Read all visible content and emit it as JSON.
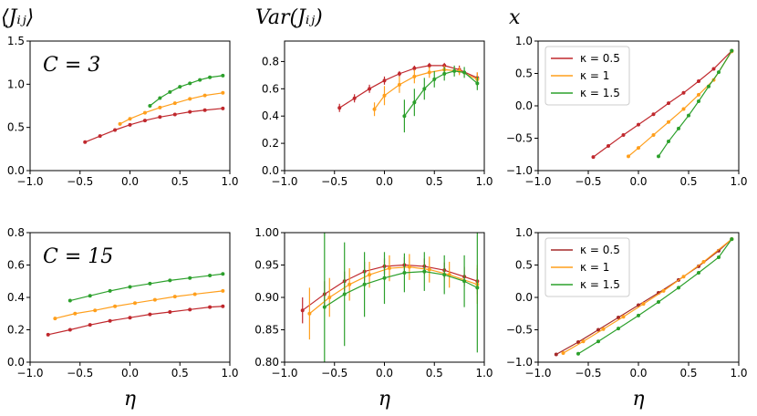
{
  "chart_data": [
    {
      "type": "line",
      "title": "⟨Jᵢⱼ⟩",
      "annotation": "C = 3",
      "xlim": [
        -1,
        1
      ],
      "xticks": [
        {
          "value": -1,
          "label": "−1.0"
        },
        {
          "value": -0.5,
          "label": "−0.5"
        },
        {
          "value": 0,
          "label": "0.0"
        },
        0.5,
        {
          "value": 1,
          "label": "1.0"
        }
      ],
      "ylim": [
        0,
        1.5
      ],
      "yticks": [
        {
          "value": 0,
          "label": "0.0"
        },
        0.5,
        {
          "value": 1,
          "label": "1.0"
        },
        1.5
      ],
      "series": [
        {
          "name": "κ = 0.5",
          "color": "#c0282d",
          "x": [
            -0.45,
            -0.3,
            -0.15,
            0,
            0.15,
            0.3,
            0.45,
            0.6,
            0.75,
            0.93
          ],
          "values": [
            0.33,
            0.4,
            0.47,
            0.53,
            0.58,
            0.62,
            0.65,
            0.68,
            0.7,
            0.72
          ]
        },
        {
          "name": "κ = 1",
          "color": "#ff9f1c",
          "x": [
            -0.1,
            0,
            0.15,
            0.3,
            0.45,
            0.6,
            0.75,
            0.93
          ],
          "values": [
            0.54,
            0.6,
            0.67,
            0.73,
            0.78,
            0.83,
            0.87,
            0.9
          ]
        },
        {
          "name": "κ = 1.5",
          "color": "#2ca02c",
          "x": [
            0.2,
            0.3,
            0.4,
            0.5,
            0.6,
            0.7,
            0.8,
            0.93
          ],
          "values": [
            0.75,
            0.84,
            0.91,
            0.97,
            1.01,
            1.05,
            1.08,
            1.1
          ]
        }
      ]
    },
    {
      "type": "errorline",
      "title": "Var(Jᵢⱼ)",
      "xlim": [
        -1,
        1
      ],
      "xticks": [
        {
          "value": -1,
          "label": "−1.0"
        },
        {
          "value": -0.5,
          "label": "−0.5"
        },
        {
          "value": 0,
          "label": "0.0"
        },
        0.5,
        {
          "value": 1,
          "label": "1.0"
        }
      ],
      "ylim": [
        0,
        0.95
      ],
      "yticks": [
        {
          "value": 0,
          "label": "0.0"
        },
        0.2,
        0.4,
        0.6,
        0.8
      ],
      "series": [
        {
          "name": "κ = 0.5",
          "color": "#c0282d",
          "x": [
            -0.45,
            -0.3,
            -0.15,
            0,
            0.15,
            0.3,
            0.45,
            0.6,
            0.75,
            0.93
          ],
          "values": [
            0.46,
            0.53,
            0.6,
            0.66,
            0.71,
            0.75,
            0.77,
            0.77,
            0.74,
            0.68
          ],
          "errors": [
            0.03,
            0.03,
            0.03,
            0.03,
            0.02,
            0.02,
            0.02,
            0.02,
            0.03,
            0.04
          ]
        },
        {
          "name": "κ = 1",
          "color": "#ff9f1c",
          "x": [
            -0.1,
            0,
            0.15,
            0.3,
            0.45,
            0.6,
            0.75,
            0.93
          ],
          "values": [
            0.45,
            0.55,
            0.63,
            0.69,
            0.72,
            0.74,
            0.73,
            0.67
          ],
          "errors": [
            0.05,
            0.07,
            0.06,
            0.05,
            0.04,
            0.03,
            0.03,
            0.05
          ]
        },
        {
          "name": "κ = 1.5",
          "color": "#2ca02c",
          "x": [
            0.2,
            0.3,
            0.4,
            0.5,
            0.6,
            0.7,
            0.8,
            0.93
          ],
          "values": [
            0.4,
            0.5,
            0.6,
            0.67,
            0.71,
            0.73,
            0.72,
            0.64
          ],
          "errors": [
            0.12,
            0.1,
            0.08,
            0.06,
            0.05,
            0.04,
            0.04,
            0.05
          ]
        }
      ]
    },
    {
      "type": "line",
      "title": "x",
      "legend": "upper left",
      "xlim": [
        -1,
        1
      ],
      "xticks": [
        {
          "value": -1,
          "label": "−1.0"
        },
        {
          "value": -0.5,
          "label": "−0.5"
        },
        {
          "value": 0,
          "label": "0.0"
        },
        0.5,
        {
          "value": 1,
          "label": "1.0"
        }
      ],
      "ylim": [
        -1,
        1
      ],
      "yticks": [
        {
          "value": -1,
          "label": "−1.0"
        },
        {
          "value": -0.5,
          "label": "−0.5"
        },
        {
          "value": 0,
          "label": "0.0"
        },
        0.5,
        {
          "value": 1,
          "label": "1.0"
        }
      ],
      "series": [
        {
          "name": "κ = 0.5",
          "color": "#c0282d",
          "x": [
            -0.45,
            -0.3,
            -0.15,
            0,
            0.15,
            0.3,
            0.45,
            0.6,
            0.75,
            0.93
          ],
          "values": [
            -0.79,
            -0.62,
            -0.45,
            -0.29,
            -0.13,
            0.04,
            0.2,
            0.38,
            0.57,
            0.85
          ]
        },
        {
          "name": "κ = 1",
          "color": "#ff9f1c",
          "x": [
            -0.1,
            0,
            0.15,
            0.3,
            0.45,
            0.6,
            0.75,
            0.93
          ],
          "values": [
            -0.78,
            -0.65,
            -0.45,
            -0.25,
            -0.05,
            0.17,
            0.4,
            0.84
          ]
        },
        {
          "name": "κ = 1.5",
          "color": "#2ca02c",
          "x": [
            0.2,
            0.3,
            0.4,
            0.5,
            0.6,
            0.7,
            0.8,
            0.93
          ],
          "values": [
            -0.78,
            -0.55,
            -0.35,
            -0.15,
            0.07,
            0.3,
            0.52,
            0.85
          ]
        }
      ]
    },
    {
      "type": "line",
      "annotation": "C = 15",
      "xlabel": "η",
      "xlim": [
        -1,
        1
      ],
      "xticks": [
        {
          "value": -1,
          "label": "−1.0"
        },
        {
          "value": -0.5,
          "label": "−0.5"
        },
        {
          "value": 0,
          "label": "0.0"
        },
        0.5,
        {
          "value": 1,
          "label": "1.0"
        }
      ],
      "ylim": [
        0,
        0.8
      ],
      "yticks": [
        {
          "value": 0,
          "label": "0.0"
        },
        0.2,
        0.4,
        0.6,
        0.8
      ],
      "series": [
        {
          "name": "κ = 0.5",
          "color": "#c0282d",
          "x": [
            -0.82,
            -0.6,
            -0.4,
            -0.2,
            0,
            0.2,
            0.4,
            0.6,
            0.8,
            0.93
          ],
          "values": [
            0.17,
            0.2,
            0.23,
            0.255,
            0.275,
            0.295,
            0.31,
            0.325,
            0.34,
            0.345
          ]
        },
        {
          "name": "κ = 1",
          "color": "#ff9f1c",
          "x": [
            -0.75,
            -0.55,
            -0.35,
            -0.15,
            0.05,
            0.25,
            0.45,
            0.65,
            0.93
          ],
          "values": [
            0.27,
            0.3,
            0.32,
            0.345,
            0.365,
            0.385,
            0.405,
            0.42,
            0.44
          ]
        },
        {
          "name": "κ = 1.5",
          "color": "#2ca02c",
          "x": [
            -0.6,
            -0.4,
            -0.2,
            0,
            0.2,
            0.4,
            0.6,
            0.8,
            0.93
          ],
          "values": [
            0.38,
            0.41,
            0.44,
            0.465,
            0.485,
            0.505,
            0.52,
            0.535,
            0.545
          ]
        }
      ]
    },
    {
      "type": "errorline",
      "xlabel": "η",
      "xlim": [
        -1,
        1
      ],
      "xticks": [
        {
          "value": -1,
          "label": "−1.0"
        },
        {
          "value": -0.5,
          "label": "−0.5"
        },
        {
          "value": 0,
          "label": "0.0"
        },
        0.5,
        {
          "value": 1,
          "label": "1.0"
        }
      ],
      "ylim": [
        0.8,
        1
      ],
      "yticks": [
        {
          "value": 0.8,
          "label": "0.80"
        },
        0.85,
        {
          "value": 0.9,
          "label": "0.90"
        },
        0.95,
        {
          "value": 1,
          "label": "1.00"
        }
      ],
      "series": [
        {
          "name": "κ = 0.5",
          "color": "#c0282d",
          "x": [
            -0.82,
            -0.6,
            -0.4,
            -0.2,
            0,
            0.2,
            0.4,
            0.6,
            0.8,
            0.93
          ],
          "values": [
            0.88,
            0.905,
            0.925,
            0.94,
            0.948,
            0.95,
            0.948,
            0.942,
            0.932,
            0.925
          ],
          "errors": [
            0.02,
            0.02,
            0.015,
            0.015,
            0.012,
            0.012,
            0.012,
            0.012,
            0.015,
            0.02
          ]
        },
        {
          "name": "κ = 1",
          "color": "#ff9f1c",
          "x": [
            -0.75,
            -0.55,
            -0.35,
            -0.15,
            0.05,
            0.25,
            0.45,
            0.65,
            0.93
          ],
          "values": [
            0.875,
            0.9,
            0.92,
            0.935,
            0.945,
            0.947,
            0.943,
            0.935,
            0.92
          ],
          "errors": [
            0.04,
            0.03,
            0.025,
            0.02,
            0.02,
            0.02,
            0.02,
            0.02,
            0.03
          ]
        },
        {
          "name": "κ = 1.5",
          "color": "#2ca02c",
          "x": [
            -0.6,
            -0.4,
            -0.2,
            0,
            0.2,
            0.4,
            0.6,
            0.8,
            0.93
          ],
          "values": [
            0.885,
            0.905,
            0.92,
            0.93,
            0.938,
            0.94,
            0.935,
            0.925,
            0.915
          ],
          "errors": [
            0.12,
            0.08,
            0.05,
            0.04,
            0.03,
            0.03,
            0.03,
            0.04,
            0.1
          ]
        }
      ]
    },
    {
      "type": "line",
      "legend": "upper left",
      "xlabel": "η",
      "xlim": [
        -1,
        1
      ],
      "xticks": [
        {
          "value": -1,
          "label": "−1.0"
        },
        {
          "value": -0.5,
          "label": "−0.5"
        },
        {
          "value": 0,
          "label": "0.0"
        },
        0.5,
        {
          "value": 1,
          "label": "1.0"
        }
      ],
      "ylim": [
        -1,
        1
      ],
      "yticks": [
        {
          "value": -1,
          "label": "−1.0"
        },
        {
          "value": -0.5,
          "label": "−0.5"
        },
        {
          "value": 0,
          "label": "0.0"
        },
        0.5,
        {
          "value": 1,
          "label": "1.0"
        }
      ],
      "series": [
        {
          "name": "κ = 0.5",
          "color": "#a52a2a",
          "x": [
            -0.82,
            -0.6,
            -0.4,
            -0.2,
            0,
            0.2,
            0.4,
            0.6,
            0.8,
            0.93
          ],
          "values": [
            -0.88,
            -0.69,
            -0.5,
            -0.31,
            -0.12,
            0.07,
            0.27,
            0.48,
            0.72,
            0.9
          ]
        },
        {
          "name": "κ = 1",
          "color": "#ff9f1c",
          "x": [
            -0.75,
            -0.55,
            -0.35,
            -0.15,
            0.05,
            0.25,
            0.45,
            0.65,
            0.93
          ],
          "values": [
            -0.86,
            -0.68,
            -0.49,
            -0.3,
            -0.1,
            0.1,
            0.32,
            0.55,
            0.9
          ]
        },
        {
          "name": "κ = 1.5",
          "color": "#2ca02c",
          "x": [
            -0.6,
            -0.4,
            -0.2,
            0,
            0.2,
            0.4,
            0.6,
            0.8,
            0.93
          ],
          "values": [
            -0.87,
            -0.68,
            -0.48,
            -0.28,
            -0.07,
            0.15,
            0.38,
            0.62,
            0.9
          ]
        }
      ]
    }
  ]
}
